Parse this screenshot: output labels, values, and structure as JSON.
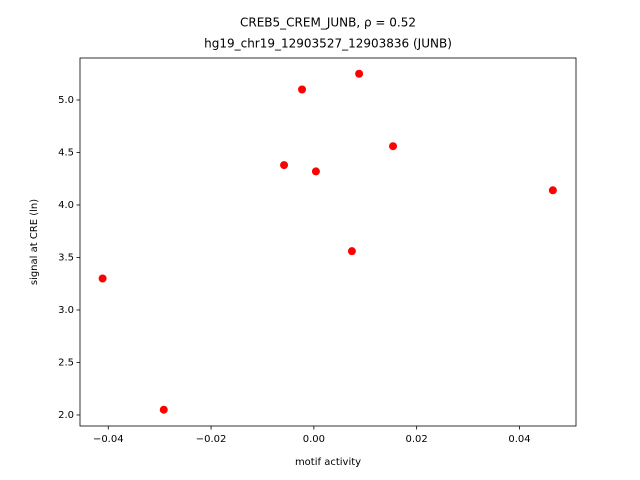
{
  "chart_data": {
    "type": "scatter",
    "title": "CREB5_CREM_JUNB, ρ = 0.52",
    "subtitle": "hg19_chr19_12903527_12903836 (JUNB)",
    "x_label": "motif activity",
    "y_label": "signal at CRE (ln)",
    "color": "#ff0000",
    "x": [
      -0.0411,
      -0.0292,
      -0.0058,
      -0.0023,
      0.0004,
      0.0074,
      0.0088,
      0.0154,
      0.0465
    ],
    "values": [
      3.3,
      2.05,
      4.38,
      5.1,
      4.32,
      3.56,
      5.25,
      4.56,
      4.14
    ],
    "xlim": [
      -0.0455,
      0.051
    ],
    "ylim": [
      1.895,
      5.4
    ],
    "xticks": [
      {
        "value": -0.04,
        "label": "−0.04"
      },
      {
        "value": -0.02,
        "label": "−0.02"
      },
      {
        "value": 0,
        "label": "0.00"
      },
      {
        "value": 0.02,
        "label": "0.02"
      },
      {
        "value": 0.04,
        "label": "0.04"
      }
    ],
    "yticks": [
      {
        "value": 2,
        "label": "2.0"
      },
      {
        "value": 2.5,
        "label": "2.5"
      },
      {
        "value": 3,
        "label": "3.0"
      },
      {
        "value": 3.5,
        "label": "3.5"
      },
      {
        "value": 4,
        "label": "4.0"
      },
      {
        "value": 4.5,
        "label": "4.5"
      },
      {
        "value": 5,
        "label": "5.0"
      }
    ]
  }
}
